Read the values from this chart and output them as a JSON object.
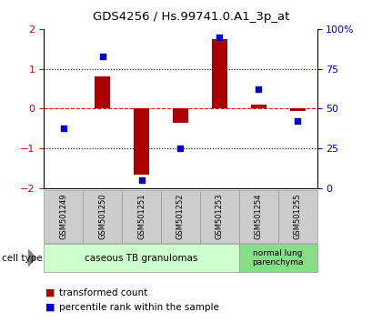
{
  "title": "GDS4256 / Hs.99741.0.A1_3p_at",
  "samples": [
    "GSM501249",
    "GSM501250",
    "GSM501251",
    "GSM501252",
    "GSM501253",
    "GSM501254",
    "GSM501255"
  ],
  "transformed_count": [
    0.0,
    0.82,
    -1.65,
    -0.35,
    1.75,
    0.1,
    -0.05
  ],
  "percentile_rank": [
    38,
    83,
    5,
    25,
    95,
    62,
    42
  ],
  "ylim_left": [
    -2,
    2
  ],
  "ylim_right": [
    0,
    100
  ],
  "yticks_left": [
    -2,
    -1,
    0,
    1,
    2
  ],
  "yticks_right": [
    0,
    25,
    50,
    75,
    100
  ],
  "ytick_labels_right": [
    "0",
    "25",
    "50",
    "75",
    "100%"
  ],
  "bar_color": "#aa0000",
  "dot_color": "#0000cc",
  "group1_label": "caseous TB granulomas",
  "group1_count": 5,
  "group1_color": "#ccffcc",
  "group2_label": "normal lung\nparenchyma",
  "group2_count": 2,
  "group2_color": "#88dd88",
  "cell_type_label": "cell type",
  "legend_bar_label": "transformed count",
  "legend_dot_label": "percentile rank within the sample",
  "bg_color": "#ffffff",
  "tick_color_left": "#cc0000",
  "tick_color_right": "#0000cc",
  "sample_box_color": "#cccccc"
}
